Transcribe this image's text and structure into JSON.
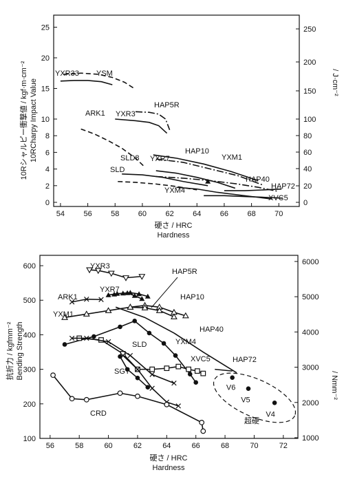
{
  "chart_data": [
    {
      "type": "line",
      "xlabel": "硬さ / HRC",
      "xlabel2": "Hardness",
      "ylabel": "10Rシャルピー衝撃値 / kgf·m·cm⁻²",
      "ylabel2": "10RCharpy Impact Value",
      "ylabel_right": "/ J·cm⁻²",
      "xlim": [
        53.5,
        71.5
      ],
      "ylim": [
        0,
        27.5
      ],
      "x_ticks": [
        54,
        56,
        58,
        60,
        62,
        64,
        66,
        68,
        70
      ],
      "y_ticks": [
        0,
        2,
        4,
        6,
        8,
        10,
        15,
        20,
        25
      ],
      "y_right_ticks": [
        0,
        20,
        40,
        60,
        80,
        100,
        150,
        200,
        250
      ],
      "series": [
        {
          "name": "YXR33",
          "style": "solid",
          "x": [
            54,
            55,
            56,
            57,
            57.8
          ],
          "y": [
            16.2,
            16.3,
            16.3,
            16.1,
            15.6
          ]
        },
        {
          "name": "YSM",
          "style": "dashed",
          "x": [
            54.2,
            55.5,
            56.8,
            57.8,
            58.7,
            59.4
          ],
          "y": [
            17.3,
            17.5,
            17.3,
            16.8,
            16.0,
            15.0
          ]
        },
        {
          "name": "ARK1",
          "style": "dashed",
          "x": [
            55.5,
            56.5,
            57.5,
            58.5,
            59.5,
            60.2
          ],
          "y": [
            8.8,
            8.2,
            7.4,
            6.5,
            5.3,
            4.2
          ]
        },
        {
          "name": "YXR3",
          "style": "solid",
          "x": [
            58,
            59.5,
            60.5,
            61.2,
            61.8
          ],
          "y": [
            10.0,
            9.8,
            9.6,
            9.2,
            8.3
          ]
        },
        {
          "name": "HAP5R",
          "style": "dashdot",
          "x": [
            59.5,
            60.5,
            61.2,
            61.7,
            62.0
          ],
          "y": [
            11.2,
            11.1,
            10.8,
            10.0,
            8.7
          ]
        },
        {
          "name": "HAP10",
          "style": "solid",
          "x": [
            60.8,
            62.5,
            64.5,
            66.5,
            68.5
          ],
          "y": [
            5.7,
            5.3,
            4.6,
            3.7,
            2.6
          ]
        },
        {
          "name": "YXM1",
          "style": "dashdot",
          "x": [
            61,
            63,
            65,
            67,
            68.8
          ],
          "y": [
            5.2,
            4.8,
            4.0,
            3.2,
            2.1
          ]
        },
        {
          "name": "YXR7",
          "style": "solid",
          "x": [
            61,
            62.5,
            64,
            65.5,
            66.8
          ],
          "y": [
            3.8,
            3.5,
            3.0,
            2.4,
            1.7
          ]
        },
        {
          "name": "HAP40",
          "style": "dashdot",
          "x": [
            61,
            63,
            65,
            67,
            68.5,
            70.0
          ],
          "y": [
            3.1,
            2.9,
            2.6,
            2.2,
            1.8,
            1.3
          ]
        },
        {
          "name": "HAP72",
          "style": "solid",
          "x": [
            66,
            67.5,
            69,
            70.2
          ],
          "y": [
            1.4,
            1.4,
            1.5,
            1.6
          ]
        },
        {
          "name": "SLD8",
          "style": "solid",
          "x": [
            58.5,
            60,
            61.5,
            63,
            64.8
          ],
          "y": [
            3.4,
            3.3,
            3.0,
            2.5,
            2.0
          ]
        },
        {
          "name": "SLD",
          "style": "dashed",
          "x": [
            58.2,
            59.5,
            61,
            62.5,
            64
          ],
          "y": [
            2.5,
            2.4,
            2.2,
            1.9,
            1.5
          ]
        },
        {
          "name": "YXM4",
          "style": "solid",
          "x": [
            62.5,
            64,
            65.5,
            67,
            68.5,
            69.5
          ],
          "y": [
            1.8,
            1.6,
            1.2,
            0.9,
            0.6,
            0.4
          ]
        },
        {
          "name": "XVC5",
          "style": "solid",
          "x": [
            64.5,
            66,
            67.5,
            69,
            70.3
          ],
          "y": [
            0.8,
            0.8,
            0.7,
            0.6,
            0.5
          ]
        }
      ],
      "marker": {
        "x": 64.8,
        "y": 2.5,
        "shape": "triangle-filled"
      }
    },
    {
      "type": "line",
      "xlabel": "硬さ / HRC",
      "xlabel2": "Hardness",
      "ylabel": "抗折力 / kgfmm⁻²",
      "ylabel2": "Bending Strength",
      "ylabel_right": "/ Nmm⁻²",
      "xlim": [
        55.3,
        73
      ],
      "ylim": [
        100,
        630
      ],
      "x_ticks": [
        56,
        58,
        60,
        62,
        64,
        66,
        68,
        70,
        72
      ],
      "y_ticks": [
        100,
        200,
        300,
        400,
        500,
        600
      ],
      "y_right_ticks": [
        1000,
        2000,
        3000,
        4000,
        5000,
        6000
      ],
      "series": [
        {
          "name": "YXR3",
          "marker": "triangle-down-open",
          "x": [
            58.7,
            59.3,
            60.2,
            61.2,
            62.3
          ],
          "y": [
            588,
            586,
            578,
            565,
            569
          ]
        },
        {
          "name": "HAP5R",
          "marker": "triangle-up-filled",
          "x": [
            60.4,
            61.0,
            61.5,
            62.1,
            62.7
          ],
          "y": [
            517,
            520,
            522,
            518,
            511
          ]
        },
        {
          "name": "YXR7",
          "marker": "triangle-up-filled",
          "x": [
            60,
            60.6,
            61.3,
            61.8,
            62.3
          ],
          "y": [
            515,
            519,
            521,
            513,
            504
          ]
        },
        {
          "name": "ARK1",
          "marker": "cross",
          "x": [
            57.5,
            58.5,
            59.5
          ],
          "y": [
            495,
            503,
            502
          ]
        },
        {
          "name": "HAP10",
          "marker": "triangle-up-open",
          "x": [
            57,
            58.5,
            60,
            61.5,
            62.5,
            63.5,
            64.5,
            65.3
          ],
          "y": [
            450,
            460,
            470,
            480,
            485,
            480,
            465,
            455
          ]
        },
        {
          "name": "YXM1",
          "marker": "triangle-up-open",
          "x": [
            61.5,
            62.5,
            63.5,
            64.5
          ],
          "y": [
            480,
            478,
            470,
            452
          ]
        },
        {
          "name": "HAP40",
          "style": "solid",
          "x": [
            60.5,
            62.5,
            64.5,
            66.5,
            68.8
          ],
          "y": [
            480,
            450,
            405,
            350,
            290
          ]
        },
        {
          "name": "YXM4",
          "marker": "circle-filled",
          "x": [
            57,
            59,
            60.8,
            61.8,
            62.8,
            63.8,
            64.6,
            65.6,
            66.0
          ],
          "y": [
            372,
            395,
            423,
            440,
            405,
            375,
            340,
            286,
            262
          ]
        },
        {
          "name": "SLD",
          "marker": "square-open",
          "x": [
            58,
            59.5,
            61,
            62,
            63,
            64,
            64.8,
            65.5,
            66.1,
            66.5
          ],
          "y": [
            390,
            385,
            345,
            300,
            300,
            303,
            308,
            300,
            295,
            288
          ]
        },
        {
          "name": "SLD8",
          "marker": "cross",
          "x": [
            57.5,
            58.5,
            60,
            61.5,
            63,
            64.5
          ],
          "y": [
            390,
            390,
            380,
            340,
            285,
            260
          ]
        },
        {
          "name": "SGT",
          "marker": "circle-filled",
          "x": [
            60.8,
            61.3,
            62.0,
            62.7
          ],
          "y": [
            337,
            300,
            275,
            248
          ]
        },
        {
          "name": "XVC5",
          "marker": "cross",
          "x": [
            61,
            62,
            63,
            64,
            64.8
          ],
          "y": [
            340,
            300,
            245,
            205,
            194
          ]
        },
        {
          "name": "HAP72",
          "style": "solid",
          "x": [
            67.3,
            68.5
          ],
          "y": [
            300,
            295
          ]
        },
        {
          "name": "CRD",
          "marker": "circle-open",
          "x": [
            56.2,
            57.5,
            58.5,
            60.8,
            62,
            64,
            66.4,
            66.5
          ],
          "y": [
            283,
            215,
            212,
            231,
            222,
            198,
            146,
            121
          ]
        }
      ],
      "points": [
        {
          "name": "V6",
          "marker": "circle-filled",
          "x": 68.5,
          "y": 276
        },
        {
          "name": "V5",
          "marker": "circle-filled",
          "x": 69.6,
          "y": 244
        },
        {
          "name": "V4",
          "marker": "circle-filled",
          "x": 71.4,
          "y": 203
        }
      ],
      "annotation": "超硬"
    }
  ]
}
